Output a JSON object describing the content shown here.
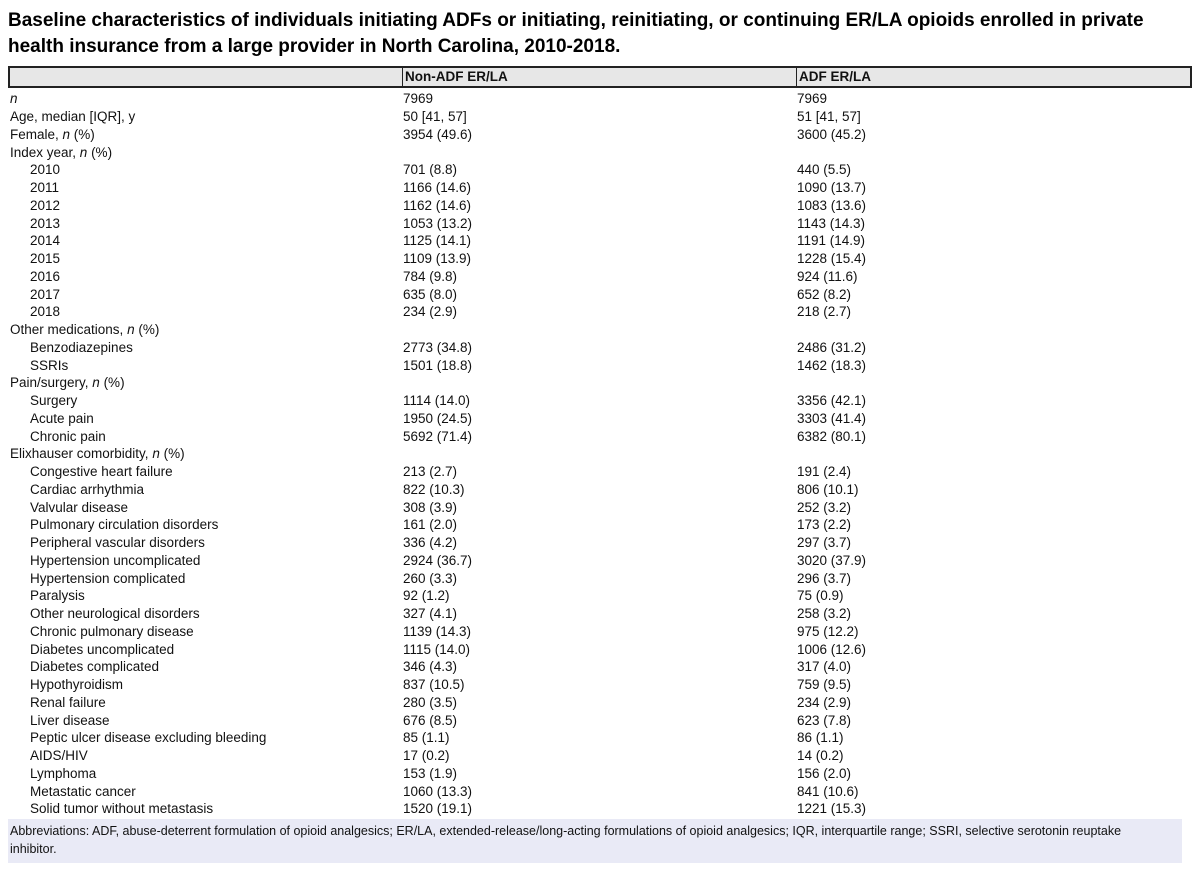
{
  "title": "Baseline characteristics of individuals initiating ADFs or initiating, reinitiating, or continuing ER/LA opioids enrolled in private health insurance from a large provider in North Carolina, 2010-2018.",
  "table": {
    "columns": [
      "",
      "Non-ADF ER/LA",
      "ADF ER/LA"
    ],
    "rows": [
      {
        "indent": 0,
        "parts": [
          {
            "text": "n",
            "italic": true
          }
        ],
        "values": [
          "7969",
          "7969"
        ]
      },
      {
        "indent": 0,
        "parts": [
          {
            "text": "Age, median [IQR], y",
            "italic": false
          }
        ],
        "values": [
          "50 [41, 57]",
          "51 [41, 57]"
        ]
      },
      {
        "indent": 0,
        "parts": [
          {
            "text": "Female, ",
            "italic": false
          },
          {
            "text": "n",
            "italic": true
          },
          {
            "text": " (%)",
            "italic": false
          }
        ],
        "values": [
          "3954 (49.6)",
          "3600 (45.2)"
        ]
      },
      {
        "indent": 0,
        "parts": [
          {
            "text": "Index year, ",
            "italic": false
          },
          {
            "text": "n",
            "italic": true
          },
          {
            "text": " (%)",
            "italic": false
          }
        ],
        "values": [
          "",
          ""
        ]
      },
      {
        "indent": 1,
        "parts": [
          {
            "text": "2010",
            "italic": false
          }
        ],
        "values": [
          "701 (8.8)",
          "440 (5.5)"
        ]
      },
      {
        "indent": 1,
        "parts": [
          {
            "text": "2011",
            "italic": false
          }
        ],
        "values": [
          "1166 (14.6)",
          "1090 (13.7)"
        ]
      },
      {
        "indent": 1,
        "parts": [
          {
            "text": "2012",
            "italic": false
          }
        ],
        "values": [
          "1162 (14.6)",
          "1083 (13.6)"
        ]
      },
      {
        "indent": 1,
        "parts": [
          {
            "text": "2013",
            "italic": false
          }
        ],
        "values": [
          "1053 (13.2)",
          "1143 (14.3)"
        ]
      },
      {
        "indent": 1,
        "parts": [
          {
            "text": "2014",
            "italic": false
          }
        ],
        "values": [
          "1125 (14.1)",
          "1191 (14.9)"
        ]
      },
      {
        "indent": 1,
        "parts": [
          {
            "text": "2015",
            "italic": false
          }
        ],
        "values": [
          "1109 (13.9)",
          "1228 (15.4)"
        ]
      },
      {
        "indent": 1,
        "parts": [
          {
            "text": "2016",
            "italic": false
          }
        ],
        "values": [
          "784 (9.8)",
          "924 (11.6)"
        ]
      },
      {
        "indent": 1,
        "parts": [
          {
            "text": "2017",
            "italic": false
          }
        ],
        "values": [
          "635 (8.0)",
          "652 (8.2)"
        ]
      },
      {
        "indent": 1,
        "parts": [
          {
            "text": "2018",
            "italic": false
          }
        ],
        "values": [
          "234 (2.9)",
          "218 (2.7)"
        ]
      },
      {
        "indent": 0,
        "parts": [
          {
            "text": "Other medications, ",
            "italic": false
          },
          {
            "text": "n",
            "italic": true
          },
          {
            "text": " (%)",
            "italic": false
          }
        ],
        "values": [
          "",
          ""
        ]
      },
      {
        "indent": 1,
        "parts": [
          {
            "text": "Benzodiazepines",
            "italic": false
          }
        ],
        "values": [
          "2773 (34.8)",
          "2486 (31.2)"
        ]
      },
      {
        "indent": 1,
        "parts": [
          {
            "text": "SSRIs",
            "italic": false
          }
        ],
        "values": [
          "1501 (18.8)",
          "1462 (18.3)"
        ]
      },
      {
        "indent": 0,
        "parts": [
          {
            "text": "Pain/surgery, ",
            "italic": false
          },
          {
            "text": "n",
            "italic": true
          },
          {
            "text": " (%)",
            "italic": false
          }
        ],
        "values": [
          "",
          ""
        ]
      },
      {
        "indent": 1,
        "parts": [
          {
            "text": "Surgery",
            "italic": false
          }
        ],
        "values": [
          "1114 (14.0)",
          "3356 (42.1)"
        ]
      },
      {
        "indent": 1,
        "parts": [
          {
            "text": "Acute pain",
            "italic": false
          }
        ],
        "values": [
          "1950 (24.5)",
          "3303 (41.4)"
        ]
      },
      {
        "indent": 1,
        "parts": [
          {
            "text": "Chronic pain",
            "italic": false
          }
        ],
        "values": [
          "5692 (71.4)",
          "6382 (80.1)"
        ]
      },
      {
        "indent": 0,
        "parts": [
          {
            "text": "Elixhauser comorbidity, ",
            "italic": false
          },
          {
            "text": "n",
            "italic": true
          },
          {
            "text": " (%)",
            "italic": false
          }
        ],
        "values": [
          "",
          ""
        ]
      },
      {
        "indent": 1,
        "parts": [
          {
            "text": "Congestive heart failure",
            "italic": false
          }
        ],
        "values": [
          "213 (2.7)",
          "191 (2.4)"
        ]
      },
      {
        "indent": 1,
        "parts": [
          {
            "text": "Cardiac arrhythmia",
            "italic": false
          }
        ],
        "values": [
          "822 (10.3)",
          "806 (10.1)"
        ]
      },
      {
        "indent": 1,
        "parts": [
          {
            "text": "Valvular disease",
            "italic": false
          }
        ],
        "values": [
          "308 (3.9)",
          "252 (3.2)"
        ]
      },
      {
        "indent": 1,
        "parts": [
          {
            "text": "Pulmonary circulation disorders",
            "italic": false
          }
        ],
        "values": [
          "161 (2.0)",
          "173 (2.2)"
        ]
      },
      {
        "indent": 1,
        "parts": [
          {
            "text": "Peripheral vascular disorders",
            "italic": false
          }
        ],
        "values": [
          "336 (4.2)",
          "297 (3.7)"
        ]
      },
      {
        "indent": 1,
        "parts": [
          {
            "text": "Hypertension uncomplicated",
            "italic": false
          }
        ],
        "values": [
          "2924 (36.7)",
          "3020 (37.9)"
        ]
      },
      {
        "indent": 1,
        "parts": [
          {
            "text": "Hypertension complicated",
            "italic": false
          }
        ],
        "values": [
          "260 (3.3)",
          "296 (3.7)"
        ]
      },
      {
        "indent": 1,
        "parts": [
          {
            "text": "Paralysis",
            "italic": false
          }
        ],
        "values": [
          "92 (1.2)",
          "75 (0.9)"
        ]
      },
      {
        "indent": 1,
        "parts": [
          {
            "text": "Other neurological disorders",
            "italic": false
          }
        ],
        "values": [
          "327 (4.1)",
          "258 (3.2)"
        ]
      },
      {
        "indent": 1,
        "parts": [
          {
            "text": "Chronic pulmonary disease",
            "italic": false
          }
        ],
        "values": [
          "1139 (14.3)",
          "975 (12.2)"
        ]
      },
      {
        "indent": 1,
        "parts": [
          {
            "text": "Diabetes uncomplicated",
            "italic": false
          }
        ],
        "values": [
          "1115 (14.0)",
          "1006 (12.6)"
        ]
      },
      {
        "indent": 1,
        "parts": [
          {
            "text": "Diabetes complicated",
            "italic": false
          }
        ],
        "values": [
          "346 (4.3)",
          "317 (4.0)"
        ]
      },
      {
        "indent": 1,
        "parts": [
          {
            "text": "Hypothyroidism",
            "italic": false
          }
        ],
        "values": [
          "837 (10.5)",
          "759 (9.5)"
        ]
      },
      {
        "indent": 1,
        "parts": [
          {
            "text": "Renal failure",
            "italic": false
          }
        ],
        "values": [
          "280 (3.5)",
          "234 (2.9)"
        ]
      },
      {
        "indent": 1,
        "parts": [
          {
            "text": "Liver disease",
            "italic": false
          }
        ],
        "values": [
          "676 (8.5)",
          "623 (7.8)"
        ]
      },
      {
        "indent": 1,
        "parts": [
          {
            "text": "Peptic ulcer disease excluding bleeding",
            "italic": false
          }
        ],
        "values": [
          "85 (1.1)",
          "86 (1.1)"
        ]
      },
      {
        "indent": 1,
        "parts": [
          {
            "text": "AIDS/HIV",
            "italic": false
          }
        ],
        "values": [
          "17 (0.2)",
          "14 (0.2)"
        ]
      },
      {
        "indent": 1,
        "parts": [
          {
            "text": "Lymphoma",
            "italic": false
          }
        ],
        "values": [
          "153 (1.9)",
          "156 (2.0)"
        ]
      },
      {
        "indent": 1,
        "parts": [
          {
            "text": "Metastatic cancer",
            "italic": false
          }
        ],
        "values": [
          "1060 (13.3)",
          "841 (10.6)"
        ]
      },
      {
        "indent": 1,
        "parts": [
          {
            "text": "Solid tumor without metastasis",
            "italic": false
          }
        ],
        "values": [
          "1520 (19.1)",
          "1221 (15.3)"
        ]
      }
    ]
  },
  "footnote": "Abbreviations: ADF, abuse-deterrent formulation of opioid analgesics; ER/LA, extended-release/long-acting formulations of opioid analgesics; IQR, interquartile range; SSRI, selective serotonin reuptake inhibitor.",
  "colors": {
    "header_background": "#e7e7e7",
    "header_border": "#222222",
    "footnote_background": "#e9eaf6",
    "text": "#111111"
  }
}
